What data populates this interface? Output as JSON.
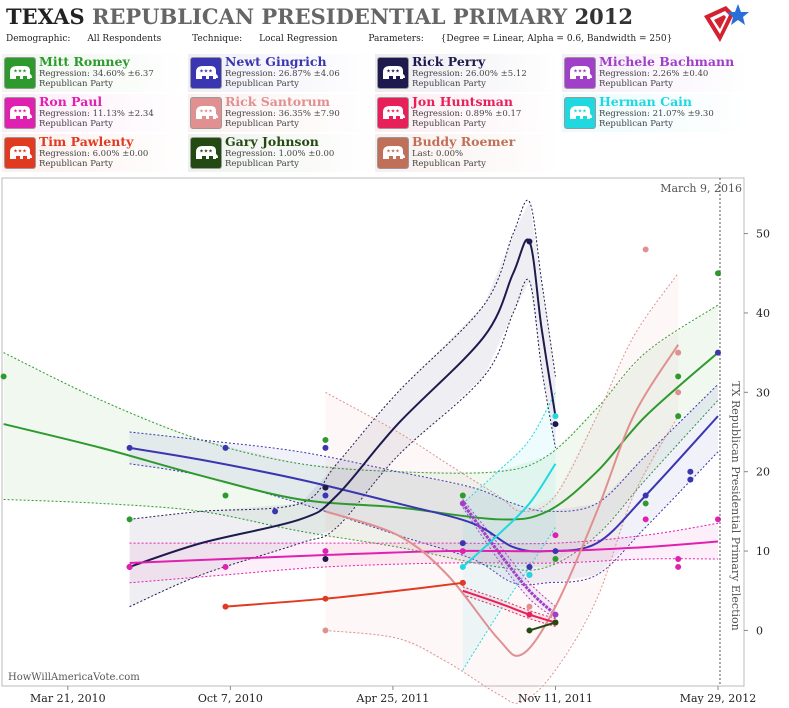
{
  "header": {
    "title_state": "TEXAS",
    "title_rest": "REPUBLICAN PRESIDENTIAL PRIMARY",
    "title_year": "2012",
    "demographic_label": "Demographic:",
    "demographic_value": "All Respondents",
    "technique_label": "Technique:",
    "technique_value": "Local Regression",
    "parameters_label": "Parameters:",
    "parameters_value": "{Degree = Linear, Alpha = 0.6, Bandwidth = 250}"
  },
  "candidates": [
    {
      "name": "Mitt Romney",
      "stat": "Regression: 34.60% ±6.37",
      "party": "Republican Party",
      "color": "#2e9a2e",
      "bg": "#eef6ee"
    },
    {
      "name": "Newt Gingrich",
      "stat": "Regression: 26.87% ±4.06",
      "party": "Republican Party",
      "color": "#3a35b0",
      "bg": "#eeeef8"
    },
    {
      "name": "Rick Perry",
      "stat": "Regression: 26.00% ±5.12",
      "party": "Republican Party",
      "color": "#1e1a4e",
      "bg": "#ececf2"
    },
    {
      "name": "Michele Bachmann",
      "stat": "Regression: 2.26% ±0.40",
      "party": "Republican Party",
      "color": "#a040c8",
      "bg": "#f5ecf9"
    },
    {
      "name": "Ron Paul",
      "stat": "Regression: 11.13% ±2.34",
      "party": "Republican Party",
      "color": "#e020b0",
      "bg": "#fcecf8"
    },
    {
      "name": "Rick Santorum",
      "stat": "Regression: 36.35% ±7.90",
      "party": "Republican Party",
      "color": "#e09090",
      "bg": "#fbf0f0"
    },
    {
      "name": "Jon Huntsman",
      "stat": "Regression: 0.89% ±0.17",
      "party": "Republican Party",
      "color": "#e8205a",
      "bg": "#fcecf1"
    },
    {
      "name": "Herman Cain",
      "stat": "Regression: 21.07% ±9.30",
      "party": "Republican Party",
      "color": "#20d8e0",
      "bg": "#ebfbfc"
    },
    {
      "name": "Tim Pawlenty",
      "stat": "Regression: 6.00% ±0.00",
      "party": "Republican Party",
      "color": "#e03a20",
      "bg": "#fcefec"
    },
    {
      "name": "Gary Johnson",
      "stat": "Regression: 1.00% ±0.00",
      "party": "Republican Party",
      "color": "#244a14",
      "bg": "#eef2ec"
    },
    {
      "name": "Buddy Roemer",
      "stat": "Last: 0.00%",
      "party": "Republican Party",
      "color": "#c07058",
      "bg": "#f8efec"
    }
  ],
  "chart_data": {
    "type": "line",
    "x_axis": "date",
    "xlim": [
      "2009-12-30",
      "2012-06-30"
    ],
    "ylim": [
      -7,
      57
    ],
    "x_tick_labels": [
      "Mar 21, 2010",
      "Oct 7, 2010",
      "Apr 25, 2011",
      "Nov 11, 2011",
      "May 29, 2012"
    ],
    "x_tick_dates": [
      "2010-03-21",
      "2010-10-07",
      "2011-04-25",
      "2011-11-11",
      "2012-05-29"
    ],
    "y_ticks": [
      0,
      10,
      20,
      30,
      40,
      50
    ],
    "annotation_date": "March 9, 2016",
    "election_line_label": "TX Republican Presidential Primary Election",
    "election_date": "2012-05-29",
    "watermark": "HowWillAmericaVote.com",
    "series": [
      {
        "name": "Mitt Romney",
        "color": "#2e9a2e",
        "x": [
          "2010-01-01",
          "2010-05-01",
          "2010-09-01",
          "2011-01-01",
          "2011-05-01",
          "2011-09-01",
          "2011-11-01",
          "2012-01-01",
          "2012-03-01",
          "2012-05-29"
        ],
        "y": [
          26,
          23,
          19.5,
          16.5,
          15.5,
          14,
          15,
          20,
          27,
          35
        ],
        "upper": [
          35,
          29,
          24,
          21,
          20,
          20,
          22,
          28,
          35,
          41
        ],
        "lower": [
          16.5,
          16,
          15,
          12.5,
          10.5,
          8,
          8,
          12,
          19,
          29
        ],
        "points": [
          [
            "2010-01-01",
            32
          ],
          [
            "2010-06-05",
            14
          ],
          [
            "2010-10-01",
            17
          ],
          [
            "2011-02-01",
            24
          ],
          [
            "2011-02-01",
            18
          ],
          [
            "2011-07-20",
            17
          ],
          [
            "2011-10-10",
            8
          ],
          [
            "2011-11-11",
            9
          ],
          [
            "2012-03-01",
            16
          ],
          [
            "2012-04-10",
            32
          ],
          [
            "2012-04-10",
            27
          ],
          [
            "2012-05-29",
            45
          ]
        ]
      },
      {
        "name": "Newt Gingrich",
        "color": "#3a35b0",
        "x": [
          "2010-06-05",
          "2010-09-01",
          "2011-01-01",
          "2011-05-01",
          "2011-08-01",
          "2011-09-20",
          "2011-11-01",
          "2012-01-01",
          "2012-03-01",
          "2012-05-29"
        ],
        "y": [
          23,
          21.5,
          19,
          16,
          13.5,
          10.5,
          10,
          11,
          17,
          27
        ],
        "upper": [
          25,
          24,
          22.5,
          20,
          18,
          16,
          15,
          16,
          22,
          31
        ],
        "lower": [
          21,
          19.5,
          16,
          12,
          9,
          6,
          6,
          7,
          13,
          22.5
        ],
        "points": [
          [
            "2010-06-05",
            23
          ],
          [
            "2010-10-01",
            23
          ],
          [
            "2010-12-01",
            15
          ],
          [
            "2011-02-01",
            23
          ],
          [
            "2011-02-01",
            17
          ],
          [
            "2011-07-20",
            11
          ],
          [
            "2011-10-10",
            8
          ],
          [
            "2011-11-11",
            10
          ],
          [
            "2012-03-01",
            17
          ],
          [
            "2012-04-25",
            20
          ],
          [
            "2012-04-25",
            19
          ],
          [
            "2012-05-29",
            35
          ]
        ]
      },
      {
        "name": "Rick Perry",
        "color": "#1e1a4e",
        "x": [
          "2010-06-05",
          "2010-09-01",
          "2011-01-01",
          "2011-02-15",
          "2011-05-01",
          "2011-08-15",
          "2011-09-20",
          "2011-10-10",
          "2011-10-25",
          "2011-11-11"
        ],
        "y": [
          8,
          11,
          14,
          17,
          26,
          37,
          45,
          49,
          38,
          27
        ],
        "upper": [
          14,
          15,
          16,
          21,
          30,
          41,
          50,
          54,
          44,
          32
        ],
        "lower": [
          3,
          7,
          11,
          13,
          22,
          32,
          40,
          44,
          33,
          23
        ],
        "points": [
          [
            "2010-06-05",
            8
          ],
          [
            "2011-02-01",
            9
          ],
          [
            "2011-02-01",
            18
          ],
          [
            "2011-10-10",
            49
          ],
          [
            "2011-11-11",
            26
          ]
        ]
      },
      {
        "name": "Michele Bachmann",
        "color": "#a040c8",
        "x": [
          "2011-07-20",
          "2011-09-01",
          "2011-10-10",
          "2011-11-11"
        ],
        "y": [
          16,
          10,
          5,
          2
        ],
        "upper": [
          16.5,
          11,
          6,
          3
        ],
        "lower": [
          15.5,
          9,
          4,
          1.5
        ],
        "points": [
          [
            "2011-07-20",
            16
          ],
          [
            "2011-10-10",
            7
          ],
          [
            "2011-11-11",
            2
          ]
        ]
      },
      {
        "name": "Ron Paul",
        "color": "#e020b0",
        "x": [
          "2010-06-05",
          "2010-10-01",
          "2011-02-01",
          "2011-07-01",
          "2011-11-11",
          "2012-03-01",
          "2012-05-29"
        ],
        "y": [
          8.5,
          9,
          9.5,
          10,
          10,
          10.5,
          11.2
        ],
        "upper": [
          11,
          11,
          11,
          11,
          11,
          12,
          13.5
        ],
        "lower": [
          6,
          7,
          8,
          8.5,
          8.5,
          9,
          9
        ],
        "points": [
          [
            "2010-06-05",
            8
          ],
          [
            "2010-10-01",
            8
          ],
          [
            "2011-02-01",
            10
          ],
          [
            "2011-07-20",
            10
          ],
          [
            "2011-11-11",
            12
          ],
          [
            "2012-03-01",
            14
          ],
          [
            "2012-04-10",
            9
          ],
          [
            "2012-04-10",
            8
          ],
          [
            "2012-05-29",
            14
          ]
        ]
      },
      {
        "name": "Rick Santorum",
        "color": "#e09090",
        "x": [
          "2011-02-01",
          "2011-05-01",
          "2011-07-01",
          "2011-09-01",
          "2011-10-01",
          "2011-11-11",
          "2012-01-01",
          "2012-02-15",
          "2012-04-10"
        ],
        "y": [
          15,
          12,
          7,
          -1,
          -3,
          3,
          15,
          27,
          36
        ],
        "upper": [
          30,
          25,
          21,
          17,
          15,
          17,
          27,
          37,
          45
        ],
        "lower": [
          0,
          -1,
          -4,
          -8,
          -9,
          -5,
          4,
          17,
          27
        ],
        "points": [
          [
            "2011-02-01",
            0
          ],
          [
            "2011-10-10",
            3
          ],
          [
            "2012-03-01",
            48
          ],
          [
            "2012-04-10",
            35
          ],
          [
            "2012-04-10",
            30
          ]
        ]
      },
      {
        "name": "Jon Huntsman",
        "color": "#e8205a",
        "x": [
          "2011-07-20",
          "2011-09-01",
          "2011-10-10",
          "2011-11-11"
        ],
        "y": [
          5,
          3.5,
          2,
          1
        ],
        "upper": [
          5.5,
          4,
          2.5,
          1.5
        ],
        "lower": [
          4.5,
          3,
          1.5,
          0.5
        ],
        "points": [
          [
            "2011-07-20",
            6
          ],
          [
            "2011-10-10",
            2
          ],
          [
            "2011-11-11",
            1
          ]
        ]
      },
      {
        "name": "Herman Cain",
        "color": "#20d8e0",
        "x": [
          "2011-07-20",
          "2011-09-01",
          "2011-10-10",
          "2011-11-11"
        ],
        "y": [
          8,
          12,
          16,
          21
        ],
        "upper": [
          16,
          20,
          24,
          30
        ],
        "lower": [
          -5,
          2,
          8,
          13
        ],
        "points": [
          [
            "2011-07-20",
            8
          ],
          [
            "2011-10-10",
            7
          ],
          [
            "2011-11-11",
            27
          ]
        ]
      },
      {
        "name": "Tim Pawlenty",
        "color": "#e03a20",
        "x": [
          "2010-10-01",
          "2011-02-01",
          "2011-05-01",
          "2011-07-20"
        ],
        "y": [
          3,
          4,
          5,
          6
        ],
        "points": [
          [
            "2010-10-01",
            3
          ],
          [
            "2011-02-01",
            4
          ],
          [
            "2011-07-20",
            6
          ]
        ]
      },
      {
        "name": "Gary Johnson",
        "color": "#244a14",
        "x": [
          "2011-10-10",
          "2011-11-11"
        ],
        "y": [
          0,
          1
        ],
        "points": [
          [
            "2011-10-10",
            0
          ],
          [
            "2011-11-11",
            1
          ]
        ]
      }
    ]
  }
}
